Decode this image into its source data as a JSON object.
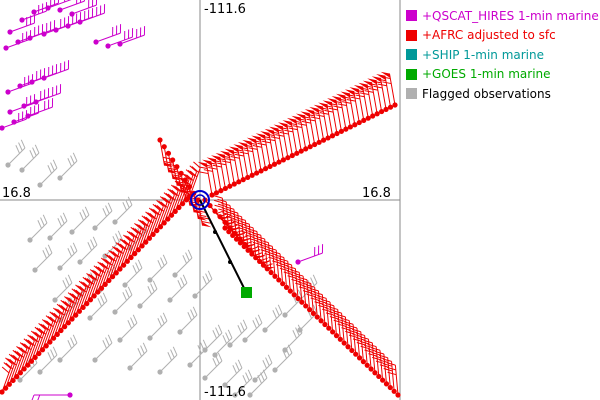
{
  "map": {
    "axis_labels": {
      "top": "-111.6",
      "bottom": "-111.6",
      "left": "16.8",
      "right": "16.8"
    },
    "colors": {
      "qscat": "#cc00cc",
      "afrc": "#ee0000",
      "ship": "#009999",
      "goes": "#00aa00",
      "flagged": "#b0b0b0",
      "center_marker": "#0000cc",
      "track": "#000000",
      "crosshair": "#888888"
    }
  },
  "legend": {
    "items": [
      {
        "label": "+QSCAT_HIRES 1-min marine",
        "color": "#cc00cc"
      },
      {
        "label": "+AFRC adjusted to sfc",
        "color": "#ee0000"
      },
      {
        "label": "+SHIP 1-min marine",
        "color": "#009999"
      },
      {
        "label": "+GOES 1-min marine",
        "color": "#00aa00"
      },
      {
        "label": "Flagged observations",
        "color": "#b0b0b0"
      }
    ]
  }
}
